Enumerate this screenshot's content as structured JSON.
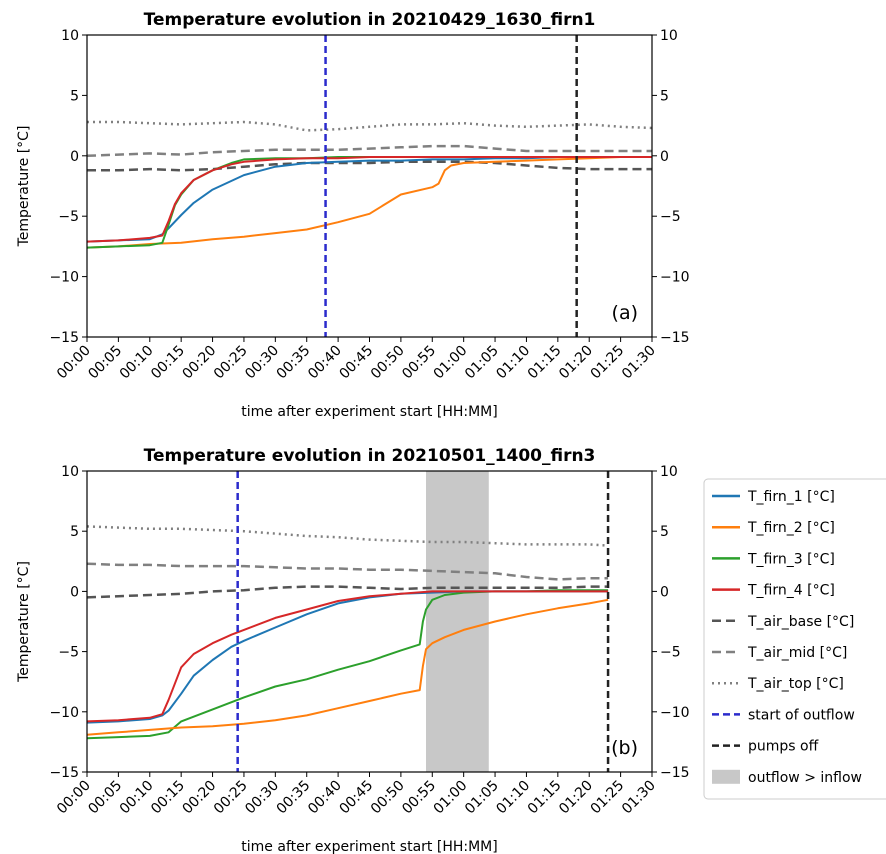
{
  "styles": {
    "T_firn_1 [°C]": {
      "color": "#1f77b4",
      "dash": "",
      "width": 2
    },
    "T_firn_2 [°C]": {
      "color": "#ff7f0e",
      "dash": "",
      "width": 2
    },
    "T_firn_3 [°C]": {
      "color": "#2ca02c",
      "dash": "",
      "width": 2
    },
    "T_firn_4 [°C]": {
      "color": "#d62728",
      "dash": "",
      "width": 2
    },
    "T_air_base [°C]": {
      "color": "#555555",
      "dash": "9,5",
      "width": 2.5
    },
    "T_air_mid [°C]": {
      "color": "#808080",
      "dash": "9,5",
      "width": 2.5
    },
    "T_air_top [°C]": {
      "color": "#808080",
      "dash": "2,4",
      "width": 2.5
    }
  },
  "legend": [
    {
      "label": "T_firn_1 [°C]",
      "kind": "line",
      "color": "#1f77b4",
      "dash": ""
    },
    {
      "label": "T_firn_2 [°C]",
      "kind": "line",
      "color": "#ff7f0e",
      "dash": ""
    },
    {
      "label": "T_firn_3 [°C]",
      "kind": "line",
      "color": "#2ca02c",
      "dash": ""
    },
    {
      "label": "T_firn_4 [°C]",
      "kind": "line",
      "color": "#d62728",
      "dash": ""
    },
    {
      "label": "T_air_base [°C]",
      "kind": "line",
      "color": "#555555",
      "dash": "9,5"
    },
    {
      "label": "T_air_mid [°C]",
      "kind": "line",
      "color": "#808080",
      "dash": "9,5"
    },
    {
      "label": "T_air_top [°C]",
      "kind": "line",
      "color": "#808080",
      "dash": "2,4"
    },
    {
      "label": "start of outflow",
      "kind": "line",
      "color": "#2b2bcc",
      "dash": "7,4"
    },
    {
      "label": "pumps off",
      "kind": "line",
      "color": "#222222",
      "dash": "7,4"
    },
    {
      "label": "outflow > inflow",
      "kind": "patch",
      "color": "#c8c8c8",
      "dash": ""
    }
  ],
  "chart_data": [
    {
      "type": "line",
      "title": "Temperature evolution in 20210429_1630_firn1",
      "xlabel": "time after experiment start [HH:MM]",
      "ylabel": "Temperature [°C]",
      "panel_label": "(a)",
      "xlim": [
        0,
        90
      ],
      "ylim": [
        -15,
        10
      ],
      "x_ticks": [
        0,
        5,
        10,
        15,
        20,
        25,
        30,
        35,
        40,
        45,
        50,
        55,
        60,
        65,
        70,
        75,
        80,
        85,
        90
      ],
      "x_tick_labels": [
        "00:00",
        "00:05",
        "00:10",
        "00:15",
        "00:20",
        "00:25",
        "00:30",
        "00:35",
        "00:40",
        "00:45",
        "00:50",
        "00:55",
        "01:00",
        "01:05",
        "01:10",
        "01:15",
        "01:20",
        "01:25",
        "01:30"
      ],
      "y_ticks": [
        -15,
        -10,
        -5,
        0,
        5,
        10
      ],
      "y_tick_labels": [
        "−15",
        "−10",
        "−5",
        "0",
        "5",
        "10"
      ],
      "right_axis_ticks": true,
      "vlines": [
        {
          "x": 38,
          "kind": "start of outflow"
        },
        {
          "x": 78,
          "kind": "pumps off"
        }
      ],
      "shaded": [],
      "series": [
        {
          "name": "T_air_top [°C]",
          "x": [
            0,
            5,
            10,
            15,
            20,
            25,
            30,
            35,
            40,
            45,
            50,
            55,
            60,
            65,
            70,
            75,
            80,
            85,
            90
          ],
          "y": [
            2.8,
            2.8,
            2.7,
            2.6,
            2.7,
            2.8,
            2.6,
            2.1,
            2.2,
            2.4,
            2.6,
            2.6,
            2.7,
            2.5,
            2.4,
            2.5,
            2.6,
            2.4,
            2.3
          ]
        },
        {
          "name": "T_air_mid [°C]",
          "x": [
            0,
            5,
            10,
            15,
            20,
            25,
            30,
            35,
            40,
            45,
            50,
            55,
            60,
            65,
            70,
            75,
            80,
            85,
            90
          ],
          "y": [
            0,
            0.1,
            0.2,
            0.1,
            0.3,
            0.4,
            0.5,
            0.5,
            0.5,
            0.6,
            0.7,
            0.8,
            0.8,
            0.6,
            0.4,
            0.4,
            0.4,
            0.4,
            0.4
          ]
        },
        {
          "name": "T_air_base [°C]",
          "x": [
            0,
            5,
            10,
            15,
            20,
            25,
            30,
            35,
            40,
            45,
            50,
            55,
            60,
            65,
            70,
            75,
            80,
            85,
            90
          ],
          "y": [
            -1.2,
            -1.2,
            -1.1,
            -1.2,
            -1.1,
            -0.9,
            -0.7,
            -0.6,
            -0.6,
            -0.6,
            -0.5,
            -0.5,
            -0.5,
            -0.6,
            -0.8,
            -1,
            -1.1,
            -1.1,
            -1.1
          ]
        },
        {
          "name": "T_firn_2 [°C]",
          "x": [
            0,
            5,
            10,
            15,
            20,
            25,
            30,
            35,
            40,
            45,
            50,
            55,
            56,
            57,
            58,
            60,
            65,
            70,
            75,
            80,
            85,
            90
          ],
          "y": [
            -7.6,
            -7.5,
            -7.3,
            -7.2,
            -6.9,
            -6.7,
            -6.4,
            -6.1,
            -5.5,
            -4.8,
            -3.2,
            -2.6,
            -2.3,
            -1.2,
            -0.8,
            -0.6,
            -0.5,
            -0.4,
            -0.3,
            -0.2,
            -0.1,
            -0.1
          ]
        },
        {
          "name": "T_firn_1 [°C]",
          "x": [
            0,
            5,
            10,
            12,
            13,
            15,
            17,
            20,
            25,
            30,
            35,
            40,
            45,
            50,
            55,
            60,
            65,
            70,
            75,
            80,
            85,
            90
          ],
          "y": [
            -7.1,
            -7,
            -6.9,
            -6.5,
            -6,
            -4.9,
            -3.9,
            -2.8,
            -1.6,
            -0.9,
            -0.6,
            -0.5,
            -0.4,
            -0.4,
            -0.3,
            -0.3,
            -0.2,
            -0.2,
            -0.1,
            -0.1,
            -0.1,
            -0.1
          ]
        },
        {
          "name": "T_firn_3 [°C]",
          "x": [
            0,
            5,
            10,
            12,
            13,
            14,
            15,
            17,
            20,
            23,
            25,
            30,
            35,
            40,
            45,
            50,
            55,
            60,
            65,
            70,
            75,
            80,
            85,
            90
          ],
          "y": [
            -7.6,
            -7.5,
            -7.4,
            -7.2,
            -5.7,
            -4.1,
            -3.2,
            -2,
            -1.2,
            -0.6,
            -0.3,
            -0.2,
            -0.2,
            -0.1,
            -0.1,
            -0.1,
            -0.1,
            -0.1,
            -0.1,
            -0.1,
            -0.1,
            -0.1,
            -0.1,
            -0.1
          ]
        },
        {
          "name": "T_firn_4 [°C]",
          "x": [
            0,
            5,
            10,
            12,
            13,
            14,
            15,
            17,
            20,
            23,
            25,
            30,
            35,
            40,
            45,
            50,
            55,
            60,
            65,
            70,
            75,
            80,
            85,
            90
          ],
          "y": [
            -7.1,
            -7,
            -6.8,
            -6.6,
            -5.4,
            -4,
            -3.1,
            -2,
            -1.2,
            -0.7,
            -0.5,
            -0.3,
            -0.2,
            -0.2,
            -0.1,
            -0.1,
            -0.1,
            -0.1,
            -0.1,
            -0.1,
            -0.1,
            -0.1,
            -0.1,
            -0.1
          ]
        }
      ]
    },
    {
      "type": "line",
      "title": "Temperature evolution in 20210501_1400_firn3",
      "xlabel": "time after experiment start [HH:MM]",
      "ylabel": "Temperature [°C]",
      "panel_label": "(b)",
      "xlim": [
        0,
        90
      ],
      "ylim": [
        -15,
        10
      ],
      "x_ticks": [
        0,
        5,
        10,
        15,
        20,
        25,
        30,
        35,
        40,
        45,
        50,
        55,
        60,
        65,
        70,
        75,
        80,
        85,
        90
      ],
      "x_tick_labels": [
        "00:00",
        "00:05",
        "00:10",
        "00:15",
        "00:20",
        "00:25",
        "00:30",
        "00:35",
        "00:40",
        "00:45",
        "00:50",
        "00:55",
        "01:00",
        "01:05",
        "01:10",
        "01:15",
        "01:20",
        "01:25",
        "01:30"
      ],
      "y_ticks": [
        -15,
        -10,
        -5,
        0,
        5,
        10
      ],
      "y_tick_labels": [
        "−15",
        "−10",
        "−5",
        "0",
        "5",
        "10"
      ],
      "right_axis_ticks": true,
      "vlines": [
        {
          "x": 24,
          "kind": "start of outflow"
        },
        {
          "x": 83,
          "kind": "pumps off"
        }
      ],
      "shaded": [
        {
          "x0": 54,
          "x1": 64,
          "kind": "outflow > inflow"
        }
      ],
      "series": [
        {
          "name": "T_air_top [°C]",
          "x": [
            0,
            5,
            10,
            15,
            20,
            25,
            30,
            35,
            40,
            45,
            50,
            55,
            60,
            65,
            70,
            75,
            80,
            83
          ],
          "y": [
            5.4,
            5.3,
            5.2,
            5.2,
            5.1,
            5,
            4.8,
            4.6,
            4.5,
            4.3,
            4.2,
            4.1,
            4.1,
            4,
            3.9,
            3.9,
            3.9,
            3.8
          ]
        },
        {
          "name": "T_air_mid [°C]",
          "x": [
            0,
            5,
            10,
            15,
            20,
            25,
            30,
            35,
            40,
            45,
            50,
            55,
            60,
            65,
            70,
            75,
            80,
            83
          ],
          "y": [
            2.3,
            2.2,
            2.2,
            2.1,
            2.1,
            2.1,
            2,
            1.9,
            1.9,
            1.8,
            1.8,
            1.7,
            1.6,
            1.5,
            1.2,
            1,
            1.1,
            1.1
          ]
        },
        {
          "name": "T_air_base [°C]",
          "x": [
            0,
            5,
            10,
            15,
            20,
            25,
            30,
            35,
            40,
            45,
            50,
            55,
            60,
            65,
            70,
            75,
            80,
            83
          ],
          "y": [
            -0.5,
            -0.4,
            -0.3,
            -0.2,
            0,
            0.1,
            0.3,
            0.4,
            0.4,
            0.3,
            0.2,
            0.3,
            0.3,
            0.3,
            0.3,
            0.3,
            0.4,
            0.4
          ]
        },
        {
          "name": "T_firn_3 [°C]",
          "x": [
            0,
            5,
            10,
            13,
            15,
            20,
            25,
            30,
            35,
            40,
            45,
            50,
            53,
            53.5,
            54,
            55,
            57,
            60,
            65,
            70,
            75,
            80,
            83
          ],
          "y": [
            -12.2,
            -12.1,
            -12,
            -11.7,
            -10.8,
            -9.8,
            -8.8,
            -7.9,
            -7.3,
            -6.5,
            -5.8,
            -4.9,
            -4.4,
            -2.5,
            -1.5,
            -0.7,
            -0.3,
            -0.1,
            0,
            0,
            0.1,
            0.1,
            0.1
          ]
        },
        {
          "name": "T_firn_2 [°C]",
          "x": [
            0,
            5,
            10,
            15,
            20,
            25,
            30,
            35,
            40,
            45,
            50,
            53,
            53.5,
            54,
            55,
            57,
            60,
            65,
            70,
            75,
            80,
            83
          ],
          "y": [
            -11.9,
            -11.7,
            -11.5,
            -11.3,
            -11.2,
            -11,
            -10.7,
            -10.3,
            -9.7,
            -9.1,
            -8.5,
            -8.2,
            -6.2,
            -4.8,
            -4.3,
            -3.8,
            -3.2,
            -2.5,
            -1.9,
            -1.4,
            -1,
            -0.7
          ]
        },
        {
          "name": "T_firn_1 [°C]",
          "x": [
            0,
            5,
            10,
            12,
            13,
            15,
            17,
            20,
            23,
            25,
            30,
            35,
            40,
            45,
            50,
            55,
            60,
            65,
            70,
            75,
            80,
            83
          ],
          "y": [
            -10.9,
            -10.8,
            -10.6,
            -10.3,
            -9.9,
            -8.5,
            -7,
            -5.7,
            -4.6,
            -4.1,
            -3,
            -1.9,
            -1,
            -0.5,
            -0.2,
            -0.1,
            0,
            0,
            0,
            0,
            0,
            0
          ]
        },
        {
          "name": "T_firn_4 [°C]",
          "x": [
            0,
            5,
            10,
            12,
            13,
            15,
            17,
            20,
            23,
            25,
            30,
            35,
            40,
            45,
            50,
            55,
            60,
            65,
            70,
            75,
            80,
            83
          ],
          "y": [
            -10.8,
            -10.7,
            -10.5,
            -10.2,
            -9,
            -6.3,
            -5.2,
            -4.3,
            -3.6,
            -3.2,
            -2.2,
            -1.5,
            -0.8,
            -0.4,
            -0.2,
            0,
            0,
            0,
            0,
            0,
            0,
            0
          ]
        }
      ]
    }
  ]
}
